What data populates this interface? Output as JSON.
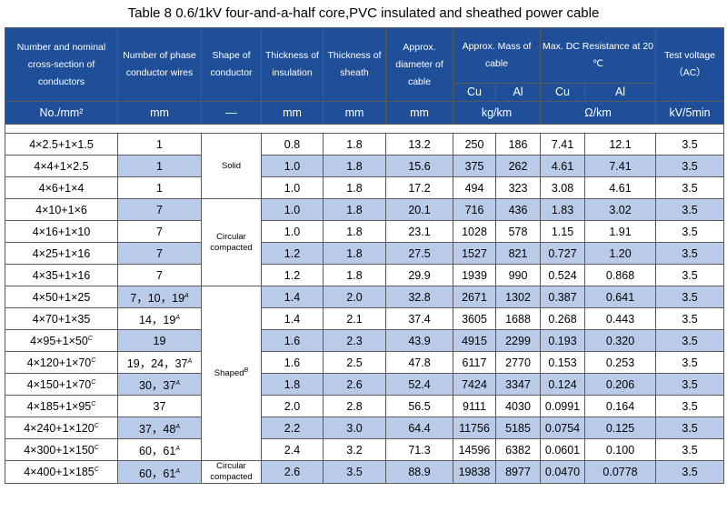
{
  "title": "Table 8    0.6/1kV four-and-a-half core,PVC insulated and sheathed power cable",
  "header": {
    "h1": "Number and nominal cross-section of conductors",
    "h2": "Number of phase conductor wires",
    "h3": "Shape of conductor",
    "h4": "Thickness of insulation",
    "h5": "Thickness of sheath",
    "h6": "Approx. diameter of cable",
    "h7": "Approx. Mass of cable",
    "h8": "Max. DC Resistance at 20 ℃",
    "h9": "Test voltage",
    "h9b": "（AC）",
    "cu1": "Cu",
    "al1": "Al",
    "cu2": "Cu",
    "al2": "Al",
    "u1": "No./mm²",
    "u2": "mm",
    "u3": "—",
    "u4": "mm",
    "u5": "mm",
    "u6": "mm",
    "u7": "kg/km",
    "u8": "Ω/km",
    "u9": "kV/5min"
  },
  "shapes": {
    "solid": "Solid",
    "circular": "Circular",
    "compacted": "compacted",
    "shaped": "Shaped",
    "shaped_sup": "B",
    "last_circular": "Circular",
    "last_compacted": "compacted"
  },
  "rows": [
    {
      "size": "4×2.5+1×1.5",
      "size_sup": "",
      "wires": "1",
      "wires_sup": "",
      "ins": "0.8",
      "sheath": "1.8",
      "dia": "13.2",
      "mcu": "250",
      "mal": "186",
      "rcu": "7.41",
      "ral": "12.1",
      "v": "3.5"
    },
    {
      "size": "4×4+1×2.5",
      "size_sup": "",
      "wires": "1",
      "wires_sup": "",
      "ins": "1.0",
      "sheath": "1.8",
      "dia": "15.6",
      "mcu": "375",
      "mal": "262",
      "rcu": "4.61",
      "ral": "7.41",
      "v": "3.5"
    },
    {
      "size": "4×6+1×4",
      "size_sup": "",
      "wires": "1",
      "wires_sup": "",
      "ins": "1.0",
      "sheath": "1.8",
      "dia": "17.2",
      "mcu": "494",
      "mal": "323",
      "rcu": "3.08",
      "ral": "4.61",
      "v": "3.5"
    },
    {
      "size": "4×10+1×6",
      "size_sup": "",
      "wires": "7",
      "wires_sup": "",
      "ins": "1.0",
      "sheath": "1.8",
      "dia": "20.1",
      "mcu": "716",
      "mal": "436",
      "rcu": "1.83",
      "ral": "3.02",
      "v": "3.5"
    },
    {
      "size": "4×16+1×10",
      "size_sup": "",
      "wires": "7",
      "wires_sup": "",
      "ins": "1.0",
      "sheath": "1.8",
      "dia": "23.1",
      "mcu": "1028",
      "mal": "578",
      "rcu": "1.15",
      "ral": "1.91",
      "v": "3.5"
    },
    {
      "size": "4×25+1×16",
      "size_sup": "",
      "wires": "7",
      "wires_sup": "",
      "ins": "1.2",
      "sheath": "1.8",
      "dia": "27.5",
      "mcu": "1527",
      "mal": "821",
      "rcu": "0.727",
      "ral": "1.20",
      "v": "3.5"
    },
    {
      "size": "4×35+1×16",
      "size_sup": "",
      "wires": "7",
      "wires_sup": "",
      "ins": "1.2",
      "sheath": "1.8",
      "dia": "29.9",
      "mcu": "1939",
      "mal": "990",
      "rcu": "0.524",
      "ral": "0.868",
      "v": "3.5"
    },
    {
      "size": "4×50+1×25",
      "size_sup": "",
      "wires": "7，10，19",
      "wires_sup": "A",
      "ins": "1.4",
      "sheath": "2.0",
      "dia": "32.8",
      "mcu": "2671",
      "mal": "1302",
      "rcu": "0.387",
      "ral": "0.641",
      "v": "3.5"
    },
    {
      "size": "4×70+1×35",
      "size_sup": "",
      "wires": "14，19",
      "wires_sup": "A",
      "ins": "1.4",
      "sheath": "2.1",
      "dia": "37.4",
      "mcu": "3605",
      "mal": "1688",
      "rcu": "0.268",
      "ral": "0.443",
      "v": "3.5"
    },
    {
      "size": "4×95+1×50",
      "size_sup": "C",
      "wires": "19",
      "wires_sup": "",
      "ins": "1.6",
      "sheath": "2.3",
      "dia": "43.9",
      "mcu": "4915",
      "mal": "2299",
      "rcu": "0.193",
      "ral": "0.320",
      "v": "3.5"
    },
    {
      "size": "4×120+1×70",
      "size_sup": "C",
      "wires": "19，24，37",
      "wires_sup": "A",
      "ins": "1.6",
      "sheath": "2.5",
      "dia": "47.8",
      "mcu": "6117",
      "mal": "2770",
      "rcu": "0.153",
      "ral": "0.253",
      "v": "3.5"
    },
    {
      "size": "4×150+1×70",
      "size_sup": "C",
      "wires": "30，37",
      "wires_sup": "A",
      "ins": "1.8",
      "sheath": "2.6",
      "dia": "52.4",
      "mcu": "7424",
      "mal": "3347",
      "rcu": "0.124",
      "ral": "0.206",
      "v": "3.5"
    },
    {
      "size": "4×185+1×95",
      "size_sup": "C",
      "wires": "37",
      "wires_sup": "",
      "ins": "2.0",
      "sheath": "2.8",
      "dia": "56.5",
      "mcu": "9111",
      "mal": "4030",
      "rcu": "0.0991",
      "ral": "0.164",
      "v": "3.5"
    },
    {
      "size": "4×240+1×120",
      "size_sup": "C",
      "wires": "37，48",
      "wires_sup": "A",
      "ins": "2.2",
      "sheath": "3.0",
      "dia": "64.4",
      "mcu": "11756",
      "mal": "5185",
      "rcu": "0.0754",
      "ral": "0.125",
      "v": "3.5"
    },
    {
      "size": "4×300+1×150",
      "size_sup": "C",
      "wires": "60，61",
      "wires_sup": "A",
      "ins": "2.4",
      "sheath": "3.2",
      "dia": "71.3",
      "mcu": "14596",
      "mal": "6382",
      "rcu": "0.0601",
      "ral": "0.100",
      "v": "3.5"
    },
    {
      "size": "4×400+1×185",
      "size_sup": "C",
      "wires": "60，61",
      "wires_sup": "A",
      "ins": "2.6",
      "sheath": "3.5",
      "dia": "88.9",
      "mcu": "19838",
      "mal": "8977",
      "rcu": "0.0470",
      "ral": "0.0778",
      "v": "3.5"
    }
  ],
  "colors": {
    "header_bg": "#1f4f98",
    "header_text": "#ffffff",
    "shade": "#b9cbe8",
    "border": "#5a5a5a"
  }
}
